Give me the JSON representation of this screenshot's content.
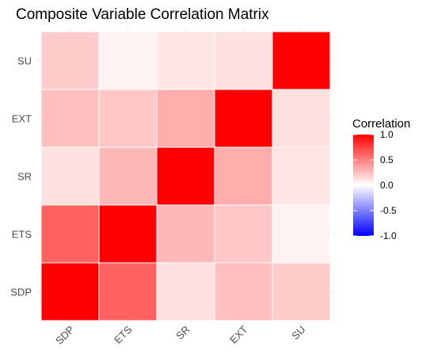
{
  "chart_data": {
    "type": "heatmap",
    "title": "Composite Variable Correlation Matrix",
    "xlabel": "",
    "ylabel": "",
    "x_categories": [
      "SDP",
      "ETS",
      "SR",
      "EXT",
      "SU"
    ],
    "y_categories": [
      "SDP",
      "ETS",
      "SR",
      "EXT",
      "SU"
    ],
    "matrix": [
      [
        1.0,
        0.62,
        0.12,
        0.25,
        0.2
      ],
      [
        0.62,
        1.0,
        0.28,
        0.22,
        0.05
      ],
      [
        0.12,
        0.28,
        1.0,
        0.32,
        0.1
      ],
      [
        0.25,
        0.22,
        0.32,
        1.0,
        0.12
      ],
      [
        0.2,
        0.05,
        0.1,
        0.12,
        1.0
      ]
    ],
    "legend": {
      "title": "Correlation",
      "ticks": [
        "1.0",
        "0.5",
        "0.0",
        "-0.5",
        "-1.0"
      ],
      "range": [
        -1.0,
        1.0
      ],
      "placement": "right"
    },
    "colors": {
      "low": "#0000ff",
      "mid": "#ffffff",
      "high": "#ff0000"
    },
    "grid": true
  }
}
